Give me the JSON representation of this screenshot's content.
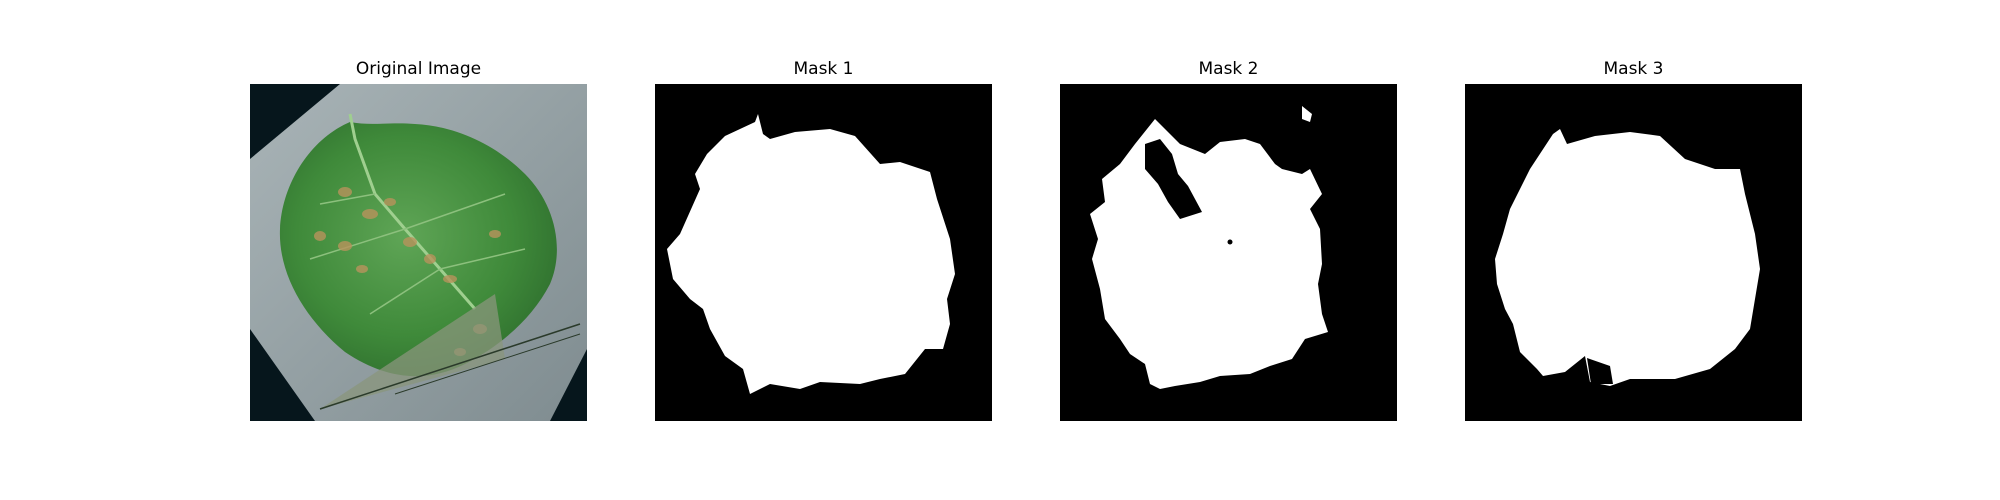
{
  "figure": {
    "panels": [
      {
        "title": "Original Image",
        "image": "leaf-photo"
      },
      {
        "title": "Mask 1",
        "image": "binary-mask"
      },
      {
        "title": "Mask 2",
        "image": "binary-mask"
      },
      {
        "title": "Mask 3",
        "image": "binary-mask"
      }
    ]
  },
  "colors": {
    "background": "#ffffff",
    "mask_background": "#000000",
    "mask_foreground": "#ffffff",
    "leaf_green": "#3f8a3a",
    "paper_gray": "#9aa5a8",
    "scan_dark": "#06161c"
  }
}
